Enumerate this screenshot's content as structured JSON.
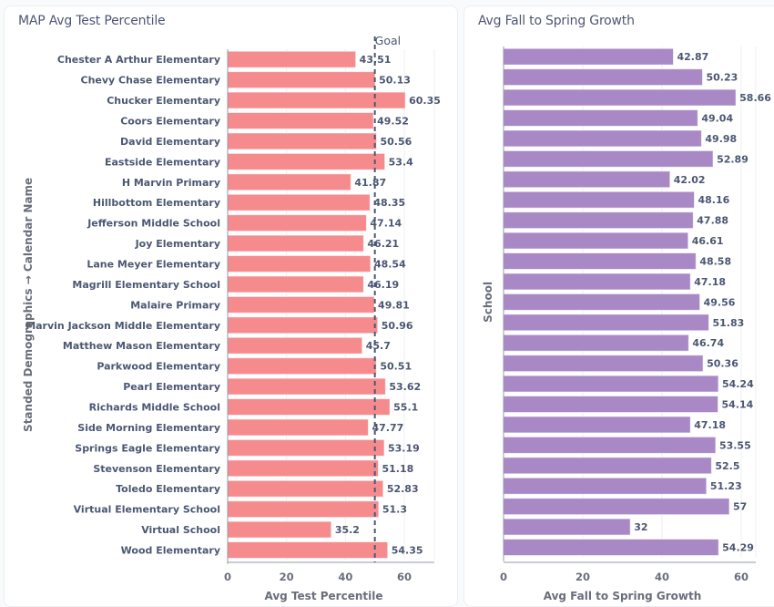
{
  "chart_data": [
    {
      "type": "bar",
      "orientation": "horizontal",
      "title": "MAP Avg Test Percentile",
      "xlabel": "Avg Test Percentile",
      "ylabel": "Standed Demographics → Calendar Name",
      "xlim": [
        0,
        70
      ],
      "xticks": [
        0,
        20,
        40,
        60
      ],
      "grid": true,
      "color": "#f68b8e",
      "goal": {
        "label": "Goal",
        "value": 50
      },
      "categories": [
        "Chester A Arthur Elementary",
        "Chevy Chase Elementary",
        "Chucker Elementary",
        "Coors Elementary",
        "David Elementary",
        "Eastside Elementary",
        "H Marvin Primary",
        "Hillbottom Elementary",
        "Jefferson Middle School",
        "Joy Elementary",
        "Lane Meyer Elementary",
        "Magrill Elementary School",
        "Malaire Primary",
        "Marvin Jackson Middle Elementary",
        "Matthew Mason Elementary",
        "Parkwood Elementary",
        "Pearl Elementary",
        "Richards Middle School",
        "Side Morning Elementary",
        "Springs Eagle Elementary",
        "Stevenson Elementary",
        "Toledo Elementary",
        "Virtual Elementary School",
        "Virtual School",
        "Wood Elementary"
      ],
      "values": [
        43.51,
        50.13,
        60.35,
        49.52,
        50.56,
        53.4,
        41.87,
        48.35,
        47.14,
        46.21,
        48.54,
        46.19,
        49.81,
        50.96,
        45.7,
        50.51,
        53.62,
        55.1,
        47.77,
        53.19,
        51.18,
        52.83,
        51.3,
        35.2,
        54.35
      ],
      "value_labels": [
        "43.51",
        "50.13",
        "60.35",
        "49.52",
        "50.56",
        "53.4",
        "41.87",
        "48.35",
        "47.14",
        "46.21",
        "48.54",
        "46.19",
        "49.81",
        "50.96",
        "45.7",
        "50.51",
        "53.62",
        "55.1",
        "47.77",
        "53.19",
        "51.18",
        "52.83",
        "51.3",
        "35.2",
        "54.35"
      ]
    },
    {
      "type": "bar",
      "orientation": "horizontal",
      "title": "Avg Fall to Spring Growth",
      "xlabel": "Avg Fall to Spring Growth",
      "ylabel": "School",
      "xlim": [
        0,
        63
      ],
      "xticks": [
        0,
        20,
        40,
        60
      ],
      "grid": true,
      "color": "#a989c5",
      "values": [
        42.87,
        50.23,
        58.66,
        49.04,
        49.98,
        52.89,
        42.02,
        48.16,
        47.88,
        46.61,
        48.58,
        47.18,
        49.56,
        51.83,
        46.74,
        50.36,
        54.24,
        54.14,
        47.18,
        53.55,
        52.5,
        51.23,
        57,
        32,
        54.29
      ],
      "value_labels": [
        "42.87",
        "50.23",
        "58.66",
        "49.04",
        "49.98",
        "52.89",
        "42.02",
        "48.16",
        "47.88",
        "46.61",
        "48.58",
        "47.18",
        "49.56",
        "51.83",
        "46.74",
        "50.36",
        "54.24",
        "54.14",
        "47.18",
        "53.55",
        "52.5",
        "51.23",
        "57",
        "32",
        "54.29"
      ]
    }
  ]
}
